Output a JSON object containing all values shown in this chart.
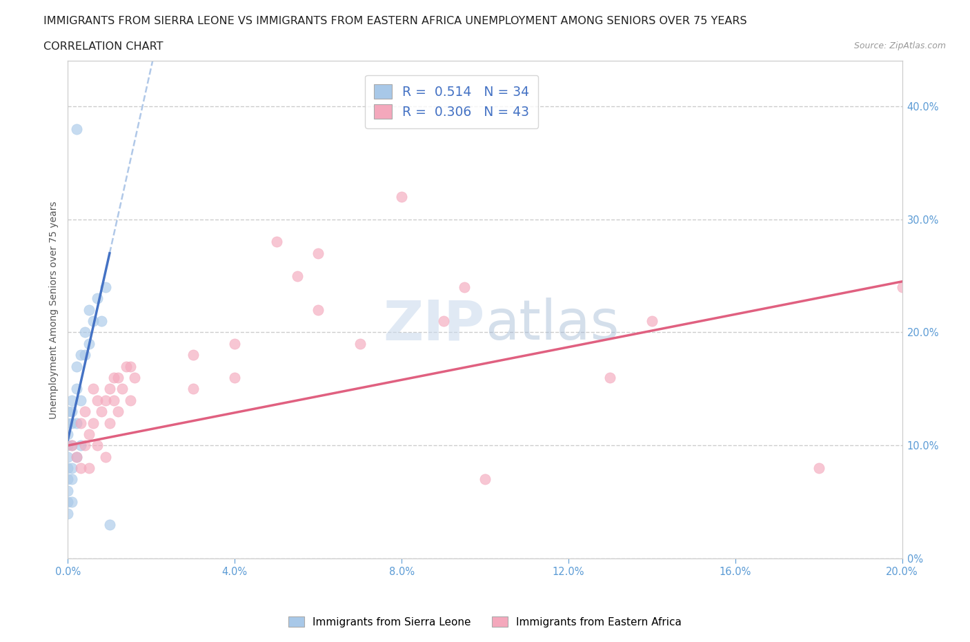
{
  "title_line1": "IMMIGRANTS FROM SIERRA LEONE VS IMMIGRANTS FROM EASTERN AFRICA UNEMPLOYMENT AMONG SENIORS OVER 75 YEARS",
  "title_line2": "CORRELATION CHART",
  "source": "Source: ZipAtlas.com",
  "ylabel": "Unemployment Among Seniors over 75 years",
  "xlim": [
    0.0,
    0.2
  ],
  "ylim": [
    0.0,
    0.44
  ],
  "xticks": [
    0.0,
    0.04,
    0.08,
    0.12,
    0.16,
    0.2
  ],
  "yticks": [
    0.0,
    0.1,
    0.2,
    0.3,
    0.4
  ],
  "color_sl": "#a8c8e8",
  "color_ea": "#f4a8bc",
  "color_sl_line": "#4472C4",
  "color_ea_line": "#e06080",
  "color_dash": "#b0c8e8",
  "watermark_color": "#d8e8f4",
  "sl_points": [
    [
      0.0,
      0.04
    ],
    [
      0.0,
      0.05
    ],
    [
      0.0,
      0.06
    ],
    [
      0.0,
      0.07
    ],
    [
      0.0,
      0.08
    ],
    [
      0.0,
      0.09
    ],
    [
      0.0,
      0.1
    ],
    [
      0.0,
      0.11
    ],
    [
      0.0,
      0.12
    ],
    [
      0.0,
      0.13
    ],
    [
      0.001,
      0.05
    ],
    [
      0.001,
      0.07
    ],
    [
      0.001,
      0.08
    ],
    [
      0.001,
      0.1
    ],
    [
      0.001,
      0.12
    ],
    [
      0.001,
      0.13
    ],
    [
      0.001,
      0.14
    ],
    [
      0.002,
      0.09
    ],
    [
      0.002,
      0.12
    ],
    [
      0.002,
      0.15
    ],
    [
      0.002,
      0.17
    ],
    [
      0.003,
      0.1
    ],
    [
      0.003,
      0.14
    ],
    [
      0.003,
      0.18
    ],
    [
      0.004,
      0.18
    ],
    [
      0.004,
      0.2
    ],
    [
      0.005,
      0.19
    ],
    [
      0.005,
      0.22
    ],
    [
      0.006,
      0.21
    ],
    [
      0.007,
      0.23
    ],
    [
      0.008,
      0.21
    ],
    [
      0.009,
      0.24
    ],
    [
      0.002,
      0.38
    ],
    [
      0.01,
      0.03
    ]
  ],
  "ea_points": [
    [
      0.001,
      0.1
    ],
    [
      0.002,
      0.09
    ],
    [
      0.003,
      0.08
    ],
    [
      0.003,
      0.12
    ],
    [
      0.004,
      0.1
    ],
    [
      0.004,
      0.13
    ],
    [
      0.005,
      0.08
    ],
    [
      0.005,
      0.11
    ],
    [
      0.006,
      0.12
    ],
    [
      0.006,
      0.15
    ],
    [
      0.007,
      0.1
    ],
    [
      0.007,
      0.14
    ],
    [
      0.008,
      0.13
    ],
    [
      0.009,
      0.09
    ],
    [
      0.009,
      0.14
    ],
    [
      0.01,
      0.12
    ],
    [
      0.01,
      0.15
    ],
    [
      0.011,
      0.14
    ],
    [
      0.011,
      0.16
    ],
    [
      0.012,
      0.13
    ],
    [
      0.012,
      0.16
    ],
    [
      0.013,
      0.15
    ],
    [
      0.014,
      0.17
    ],
    [
      0.015,
      0.14
    ],
    [
      0.015,
      0.17
    ],
    [
      0.016,
      0.16
    ],
    [
      0.03,
      0.15
    ],
    [
      0.03,
      0.18
    ],
    [
      0.04,
      0.16
    ],
    [
      0.04,
      0.19
    ],
    [
      0.05,
      0.28
    ],
    [
      0.055,
      0.25
    ],
    [
      0.06,
      0.22
    ],
    [
      0.06,
      0.27
    ],
    [
      0.07,
      0.19
    ],
    [
      0.08,
      0.32
    ],
    [
      0.09,
      0.21
    ],
    [
      0.095,
      0.24
    ],
    [
      0.1,
      0.07
    ],
    [
      0.13,
      0.16
    ],
    [
      0.14,
      0.21
    ],
    [
      0.18,
      0.08
    ],
    [
      0.2,
      0.24
    ]
  ],
  "title_fontsize": 11.5,
  "axis_fontsize": 10,
  "tick_fontsize": 10.5
}
